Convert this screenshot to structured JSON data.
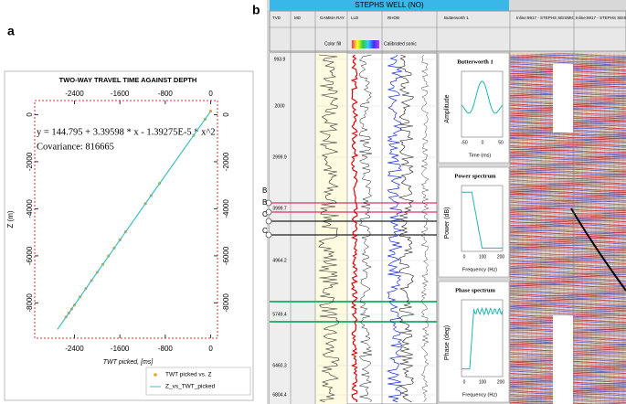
{
  "chart_data": [
    {
      "type": "scatter",
      "title": "TWO-WAY TRAVEL TIME AGAINST DEPTH",
      "xlabel": "TWT picked, [ms]",
      "ylabel": "Z (m)",
      "annotations": [
        "y = 144.795 + 3.39598 * x - 1.39275E-5 * x^2",
        "Covariance: 816665"
      ],
      "xlim": [
        -3100,
        120
      ],
      "ylim": [
        -9500,
        600
      ],
      "xticks": [
        -2400,
        -1600,
        -800,
        0
      ],
      "yticks": [
        0,
        -2000,
        -4000,
        -6000,
        -8000
      ],
      "legend": "lower right",
      "series": [
        {
          "name": "TWT picked vs. Z",
          "color": "#f0a030",
          "mode": "markers",
          "x": [
            -2550,
            -2500,
            -2450,
            -2400,
            -2300,
            -2200,
            -2100,
            -2000,
            -1900,
            -1800,
            -1700,
            -1600,
            -1500,
            -1150,
            -1050,
            -900,
            -300,
            -100,
            0
          ],
          "values": [
            -8600,
            -8430,
            -8260,
            -8090,
            -7740,
            -7390,
            -7050,
            -6700,
            -6360,
            -6010,
            -5670,
            -5320,
            -4980,
            -3780,
            -3440,
            -2920,
            -880,
            -195,
            150
          ]
        },
        {
          "name": "Z_vs_TWT_picked",
          "color": "#40c0c8",
          "mode": "line",
          "x": [
            -2700,
            -2000,
            -1000,
            0
          ],
          "values": [
            -9126,
            -6703,
            -3265,
            145
          ]
        }
      ]
    }
  ],
  "panel_labels": [
    "a",
    "b"
  ],
  "panel_b": {
    "title": "STEPHS WELL (NO)",
    "tracks": [
      "TVD",
      "MD",
      "GAMMA RAY",
      "LLD",
      "RHOB",
      "Butterworth 1",
      "Inline:8917 - STEPHS SEISMIC",
      "Inline:8917 - STEPHS SEISMIC"
    ],
    "header_notes": [
      "Color fill",
      "Calibrated sonic"
    ],
    "depths": [
      "993.9",
      "2000",
      "2999.9",
      "3999.7",
      "4964.2",
      "5749.4",
      "6460.3",
      "6804.4"
    ],
    "horizons": [
      "B",
      "B",
      "C",
      "C"
    ],
    "plots": [
      {
        "title": "Butterworth 1",
        "ylabel": "Amplitude",
        "xlabel": "Time (ms)",
        "xticks": [
          -50,
          0,
          50
        ]
      },
      {
        "title": "Power spectrum",
        "ylabel": "Power (dB)",
        "xlabel": "Frequency (Hz)",
        "xticks": [
          0,
          100,
          200
        ]
      },
      {
        "title": "Phase spectrum",
        "ylabel": "Phase (deg)",
        "xlabel": "Frequency (Hz)",
        "xticks": [
          0,
          100,
          200
        ]
      }
    ]
  }
}
